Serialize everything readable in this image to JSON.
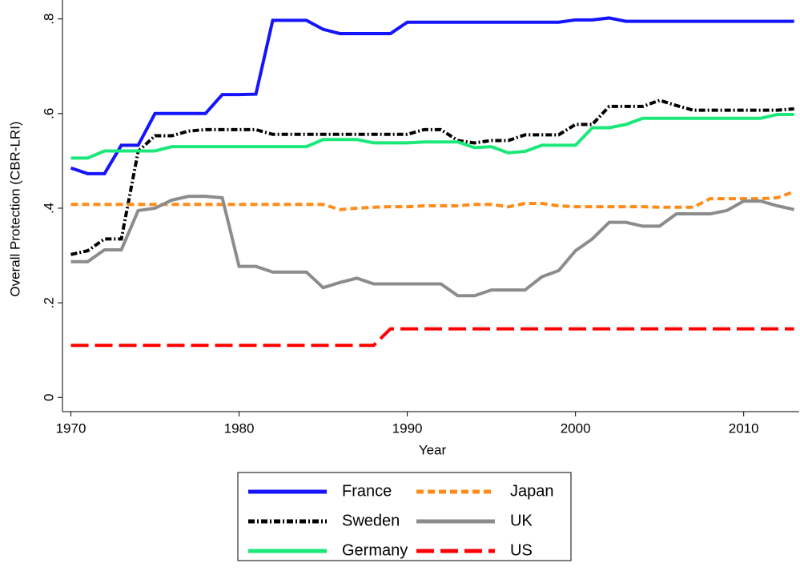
{
  "chart_data": {
    "type": "line",
    "x_label": "Year",
    "y_label": "Overall Protection (CBR-LRI)",
    "x": [
      1970,
      1971,
      1972,
      1973,
      1974,
      1975,
      1976,
      1977,
      1978,
      1979,
      1980,
      1981,
      1982,
      1983,
      1984,
      1985,
      1986,
      1987,
      1988,
      1989,
      1990,
      1991,
      1992,
      1993,
      1994,
      1995,
      1996,
      1997,
      1998,
      1999,
      2000,
      2001,
      2002,
      2003,
      2004,
      2005,
      2006,
      2007,
      2008,
      2009,
      2010,
      2011,
      2012,
      2013
    ],
    "xlim": [
      1969.5,
      2013.3
    ],
    "xticks": [
      1970,
      1980,
      1990,
      2000,
      2010
    ],
    "ylim": [
      -0.03,
      0.84
    ],
    "yticks": [
      0,
      {
        "value": 0.2,
        "label": ".2"
      },
      {
        "value": 0.4,
        "label": ".4"
      },
      {
        "value": 0.6,
        "label": ".6"
      },
      {
        "value": 0.8,
        "label": ".8"
      }
    ],
    "grid": false,
    "series": [
      {
        "name": "France",
        "color": "#1414ff",
        "values": [
          0.485,
          0.473,
          0.473,
          0.533,
          0.533,
          0.6,
          0.6,
          0.6,
          0.6,
          0.64,
          0.64,
          0.641,
          0.797,
          0.797,
          0.797,
          0.778,
          0.769,
          0.769,
          0.769,
          0.769,
          0.793,
          0.793,
          0.793,
          0.793,
          0.793,
          0.793,
          0.793,
          0.793,
          0.793,
          0.793,
          0.798,
          0.798,
          0.802,
          0.795,
          0.795,
          0.795,
          0.795,
          0.795,
          0.795,
          0.795,
          0.795,
          0.795,
          0.795,
          0.795
        ]
      },
      {
        "name": "Sweden",
        "color": "#000000",
        "values": [
          0.302,
          0.31,
          0.335,
          0.335,
          0.52,
          0.553,
          0.553,
          0.563,
          0.566,
          0.566,
          0.566,
          0.566,
          0.556,
          0.556,
          0.556,
          0.556,
          0.556,
          0.556,
          0.556,
          0.556,
          0.556,
          0.566,
          0.566,
          0.543,
          0.538,
          0.543,
          0.543,
          0.555,
          0.555,
          0.555,
          0.577,
          0.577,
          0.615,
          0.615,
          0.615,
          0.628,
          0.617,
          0.607,
          0.607,
          0.607,
          0.607,
          0.607,
          0.607,
          0.61
        ]
      },
      {
        "name": "Germany",
        "color": "#1ce87a",
        "values": [
          0.506,
          0.506,
          0.521,
          0.521,
          0.521,
          0.521,
          0.53,
          0.53,
          0.53,
          0.53,
          0.53,
          0.53,
          0.53,
          0.53,
          0.53,
          0.545,
          0.545,
          0.545,
          0.538,
          0.538,
          0.538,
          0.54,
          0.54,
          0.54,
          0.528,
          0.53,
          0.517,
          0.52,
          0.533,
          0.533,
          0.533,
          0.57,
          0.57,
          0.577,
          0.59,
          0.59,
          0.59,
          0.59,
          0.59,
          0.59,
          0.59,
          0.59,
          0.598,
          0.598
        ]
      },
      {
        "name": "Japan",
        "color": "#ff8c1a",
        "values": [
          0.408,
          0.408,
          0.408,
          0.408,
          0.408,
          0.408,
          0.408,
          0.408,
          0.408,
          0.408,
          0.408,
          0.408,
          0.408,
          0.408,
          0.408,
          0.408,
          0.397,
          0.4,
          0.402,
          0.403,
          0.403,
          0.405,
          0.405,
          0.405,
          0.408,
          0.408,
          0.403,
          0.41,
          0.41,
          0.405,
          0.403,
          0.403,
          0.403,
          0.403,
          0.403,
          0.402,
          0.402,
          0.402,
          0.42,
          0.42,
          0.42,
          0.42,
          0.422,
          0.435
        ]
      },
      {
        "name": "UK",
        "color": "#8c8c8c",
        "values": [
          0.287,
          0.287,
          0.312,
          0.312,
          0.395,
          0.4,
          0.417,
          0.425,
          0.425,
          0.422,
          0.277,
          0.277,
          0.265,
          0.265,
          0.265,
          0.232,
          0.243,
          0.252,
          0.24,
          0.24,
          0.24,
          0.24,
          0.24,
          0.215,
          0.215,
          0.227,
          0.227,
          0.227,
          0.255,
          0.268,
          0.31,
          0.335,
          0.37,
          0.37,
          0.362,
          0.362,
          0.388,
          0.388,
          0.388,
          0.395,
          0.415,
          0.415,
          0.405,
          0.397
        ]
      },
      {
        "name": "US",
        "color": "#ff0000",
        "values": [
          0.11,
          0.11,
          0.11,
          0.11,
          0.11,
          0.11,
          0.11,
          0.11,
          0.11,
          0.11,
          0.11,
          0.11,
          0.11,
          0.11,
          0.11,
          0.11,
          0.11,
          0.11,
          0.11,
          0.145,
          0.145,
          0.145,
          0.145,
          0.145,
          0.145,
          0.145,
          0.145,
          0.145,
          0.145,
          0.145,
          0.145,
          0.145,
          0.145,
          0.145,
          0.145,
          0.145,
          0.145,
          0.145,
          0.145,
          0.145,
          0.145,
          0.145,
          0.145,
          0.145
        ]
      }
    ]
  }
}
